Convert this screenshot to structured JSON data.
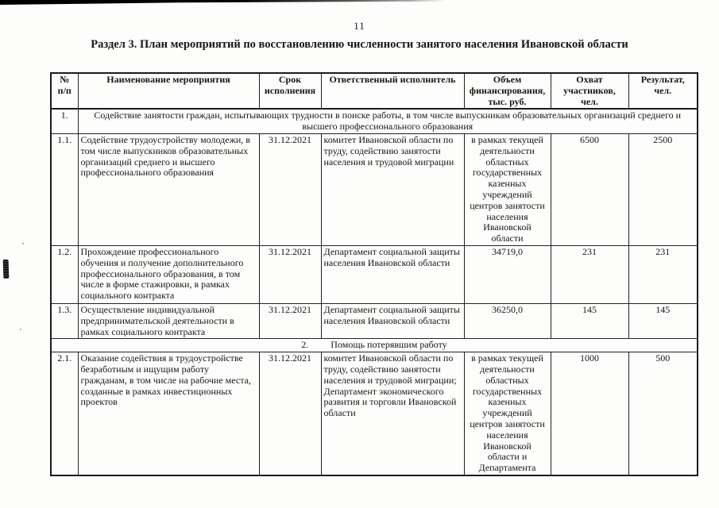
{
  "page": {
    "number": "11",
    "title": "Раздел 3. План мероприятий по восстановлению численности занятого населения Ивановской области"
  },
  "table": {
    "headers": {
      "num": "№\nп/п",
      "name": "Наименование мероприятия",
      "deadline": "Срок\nисполнения",
      "executor": "Ответственный исполнитель",
      "funding": "Объем\nфинансирования,\nтыс. руб.",
      "coverage": "Охват\nучастников,\nчел.",
      "result": "Результат,\nчел."
    },
    "section1": {
      "num": "1.",
      "title": "Содействие занятости  граждан, испытывающих трудности в поиске работы, в том числе выпускникам образовательных организаций среднего и высшего профессионального образования"
    },
    "rows1": [
      {
        "num": "1.1.",
        "name": "Содействие трудоустройству молодежи, в том числе выпускников образовательных организаций среднего и высшего профессионального образования",
        "deadline": "31.12.2021",
        "executor": "комитет Ивановской области по труду, содействию занятости населения и трудовой миграции",
        "funding": "в рамках текущей\nдеятельности\nобластных\nгосударственных\nказенных\nучреждений\nцентров занятости\nнаселения\nИвановской\nобласти",
        "coverage": "6500",
        "result": "2500"
      },
      {
        "num": "1.2.",
        "name": "Прохождение профессионального обучения и получение дополнительного профессионального образования, в том числе в форме стажировки, в рамках социального контракта",
        "deadline": "31.12.2021",
        "executor": "Департамент социальной защиты населения Ивановской области",
        "funding": "34719,0",
        "coverage": "231",
        "result": "231"
      },
      {
        "num": "1.3.",
        "name": "Осуществление индивидуальной предпринимательской деятельности в рамках социального контракта",
        "deadline": "31.12.2021",
        "executor": "Департамент социальной защиты населения Ивановской области",
        "funding": "36250,0",
        "coverage": "145",
        "result": "145"
      }
    ],
    "section2": {
      "num": "2.",
      "title": "Помощь потерявшим работу"
    },
    "rows2": [
      {
        "num": "2.1.",
        "name": "Оказание содействия в трудоустройстве безработным и ищущим работу гражданам, в том числе на рабочие места, созданные в рамках инвестиционных проектов",
        "deadline": "31.12.2021",
        "executor": "комитет Ивановской области по труду, содействию занятости населения и трудовой миграции; Департамент экономического развития и торговли Ивановской области",
        "funding": "в рамках текущей\nдеятельности\nобластных\nгосударственных\nказенных\nучреждений\nцентров занятости\nнаселения\nИвановской\nобласти и\nДепартамента",
        "coverage": "1000",
        "result": "500"
      }
    ]
  }
}
